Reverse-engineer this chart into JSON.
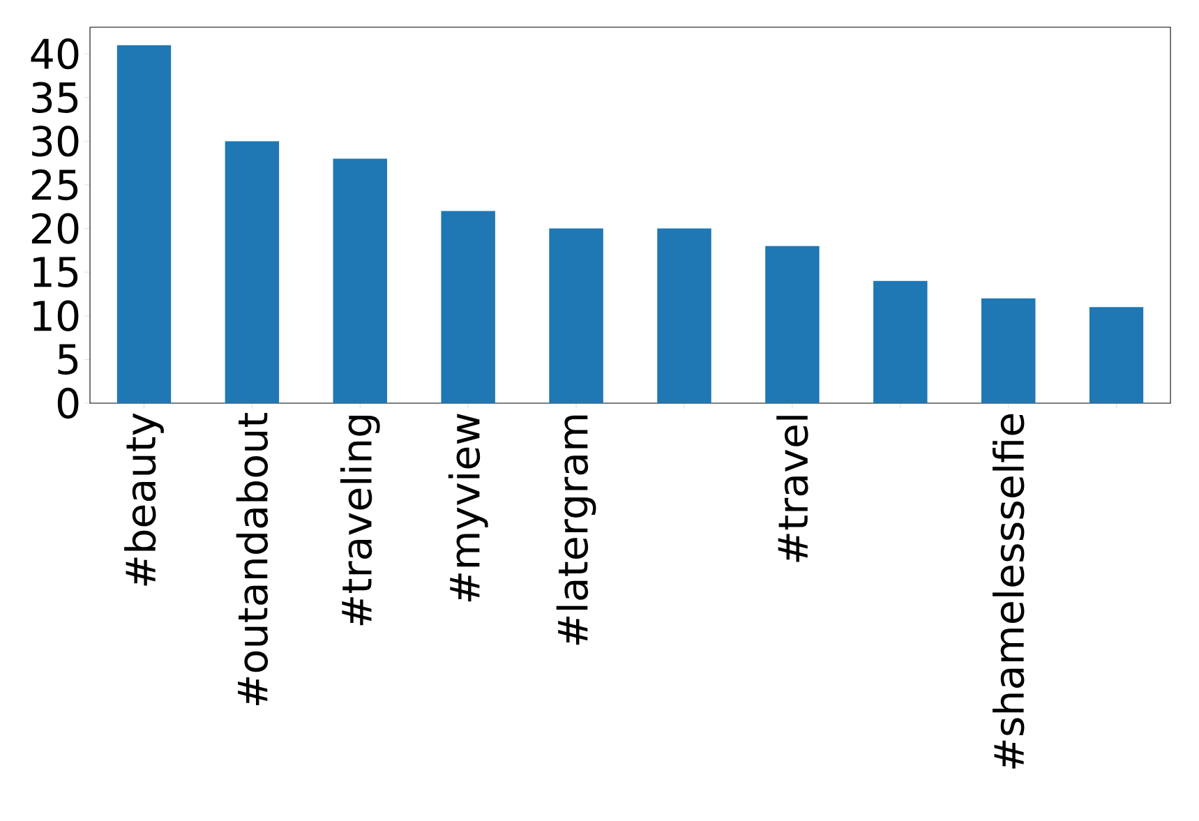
{
  "chart_data": {
    "type": "bar",
    "categories": [
      "#beauty",
      "#outandabout",
      "#traveling",
      "#myview",
      "#latergram",
      null,
      "#travel",
      null,
      "#shamelessselfie",
      null
    ],
    "values": [
      41,
      30,
      28,
      22,
      20,
      20,
      18,
      14,
      12,
      11
    ],
    "color": "#1f77b4",
    "ylim": [
      0,
      43.05
    ],
    "yticks": [
      0,
      5,
      10,
      15,
      20,
      25,
      30,
      35,
      40
    ]
  }
}
